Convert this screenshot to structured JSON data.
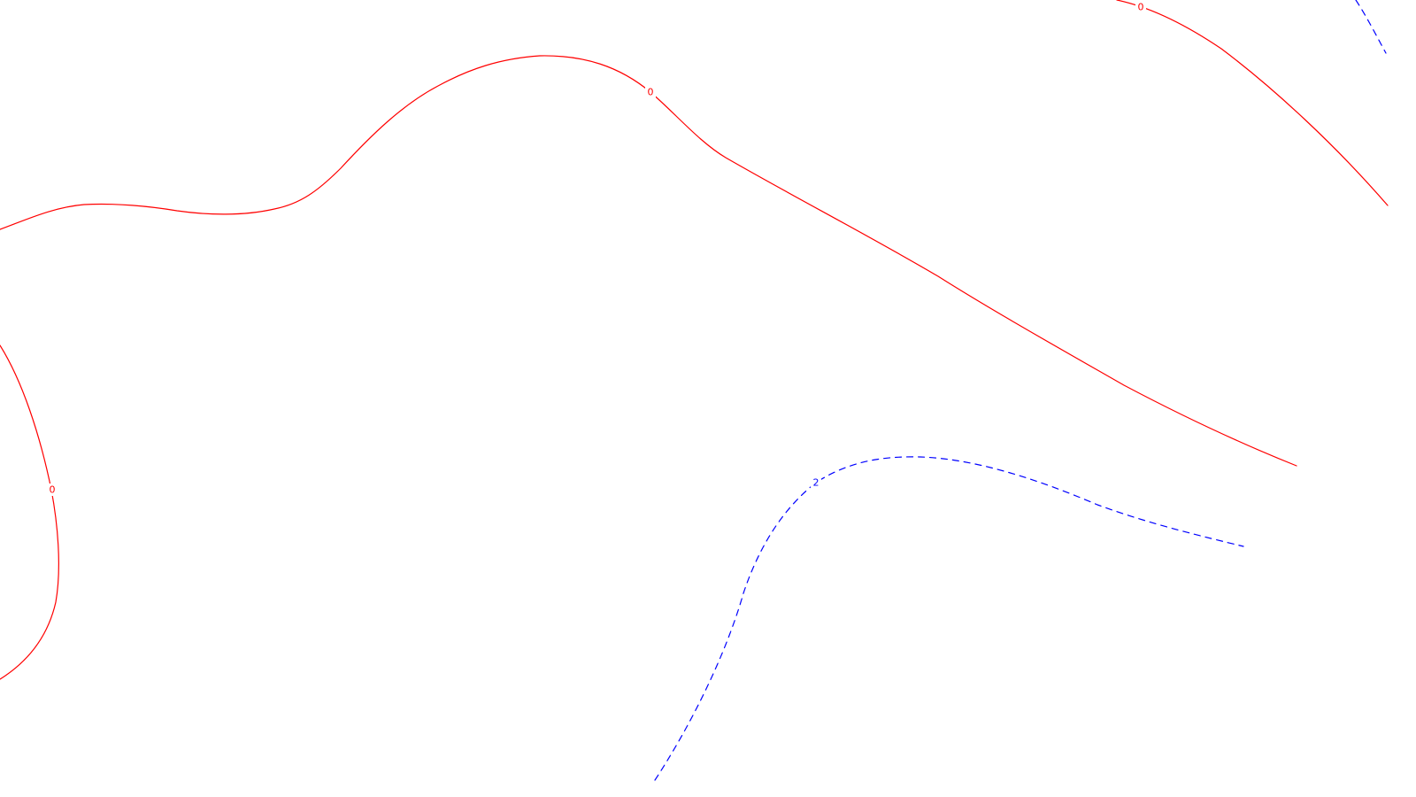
{
  "map": {
    "background": "#ffffff",
    "contours": [
      {
        "id": "zero-main",
        "level": "0",
        "color": "#ff0000",
        "style": "solid"
      },
      {
        "id": "zero-top-right",
        "level": "0",
        "color": "#ff0000",
        "style": "solid"
      },
      {
        "id": "zero-left",
        "level": "0",
        "color": "#ff0000",
        "style": "solid"
      },
      {
        "id": "two-lower",
        "level": "2",
        "color": "#0000ff",
        "style": "dashed"
      },
      {
        "id": "corner-top-right",
        "level": "",
        "color": "#0000ff",
        "style": "dashed"
      }
    ]
  }
}
